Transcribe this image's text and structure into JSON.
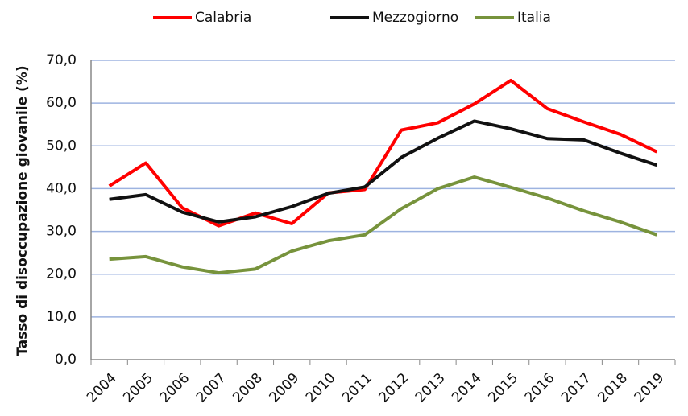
{
  "chart_data": {
    "type": "line",
    "y_label": "Tasso di disoccupazione giovanile (%)",
    "categories": [
      "2004",
      "2005",
      "2006",
      "2007",
      "2008",
      "2009",
      "2010",
      "2011",
      "2012",
      "2013",
      "2014",
      "2015",
      "2016",
      "2017",
      "2018",
      "2019"
    ],
    "series": [
      {
        "name": "Calabria",
        "color": "#ff0000",
        "values": [
          40.6,
          46.0,
          35.5,
          31.3,
          34.3,
          31.8,
          39.0,
          39.8,
          53.7,
          55.4,
          59.8,
          65.3,
          58.7,
          55.6,
          52.7,
          48.6
        ]
      },
      {
        "name": "Mezzogiorno",
        "color": "#111111",
        "values": [
          37.5,
          38.6,
          34.5,
          32.2,
          33.4,
          35.8,
          38.9,
          40.4,
          47.3,
          51.8,
          55.8,
          54.0,
          51.7,
          51.4,
          48.3,
          45.5
        ]
      },
      {
        "name": "Italia",
        "color": "#77933c",
        "values": [
          23.5,
          24.1,
          21.7,
          20.3,
          21.2,
          25.4,
          27.8,
          29.2,
          35.3,
          40.0,
          42.7,
          40.3,
          37.8,
          34.8,
          32.2,
          29.2
        ]
      }
    ],
    "ylim": [
      0,
      70
    ],
    "yticks": [
      {
        "value": 0,
        "label": "0,0"
      },
      {
        "value": 10,
        "label": "10,0"
      },
      {
        "value": 20,
        "label": "20,0"
      },
      {
        "value": 30,
        "label": "30,0"
      },
      {
        "value": 40,
        "label": "40,0"
      },
      {
        "value": 50,
        "label": "50,0"
      },
      {
        "value": 60,
        "label": "60,0"
      },
      {
        "value": 70,
        "label": "70,0"
      }
    ],
    "grid": true
  }
}
